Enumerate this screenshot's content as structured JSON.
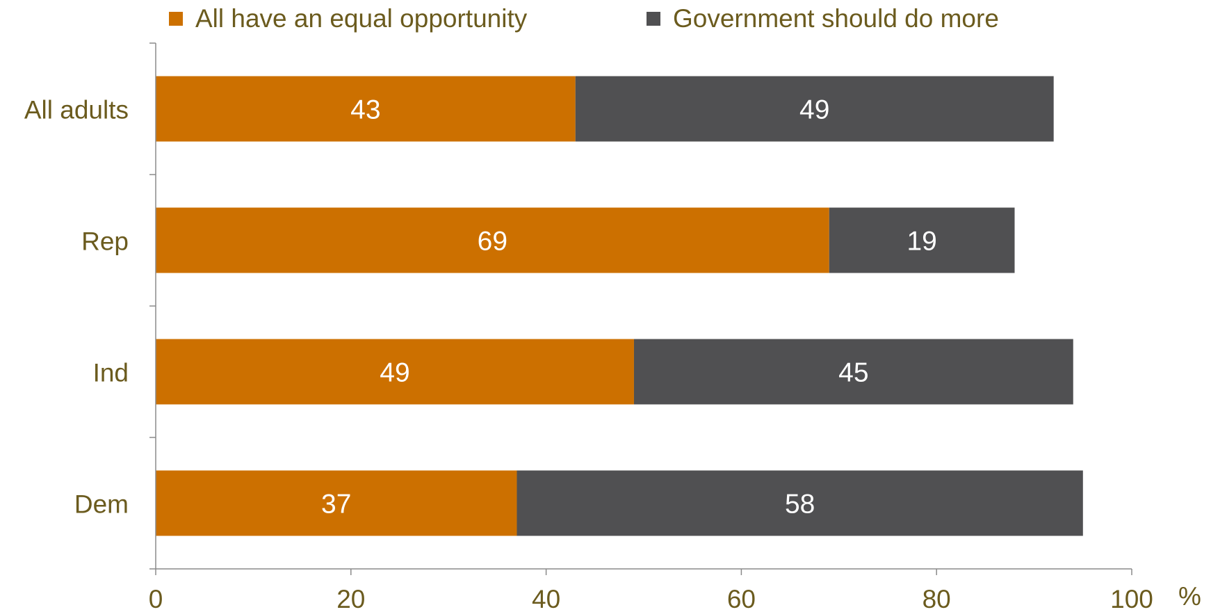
{
  "chart_data": {
    "type": "bar",
    "orientation": "horizontal",
    "stacked": true,
    "categories": [
      "All adults",
      "Rep",
      "Ind",
      "Dem"
    ],
    "series": [
      {
        "name": "All have an equal opportunity",
        "values": [
          43,
          69,
          49,
          37
        ],
        "color": "#cc7000"
      },
      {
        "name": "Government should do more",
        "values": [
          49,
          19,
          45,
          58
        ],
        "color": "#505052"
      }
    ],
    "x_ticks": [
      "0",
      "20",
      "40",
      "60",
      "80",
      "100"
    ],
    "x_unit": "%",
    "xlim": [
      0,
      100
    ],
    "title": "",
    "xlabel": "",
    "ylabel": "",
    "grid": false,
    "legend_position": "top",
    "label_color": "#6b5b1e",
    "data_label_color": "#ffffff"
  }
}
